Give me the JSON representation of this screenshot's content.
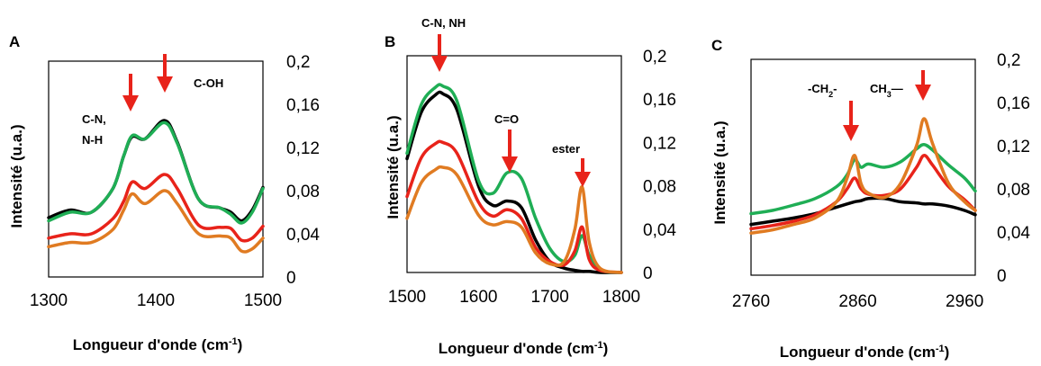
{
  "colors": {
    "black": "#000000",
    "red": "#e8231a",
    "green": "#1fae55",
    "orange": "#e07b22",
    "arrow": "#e8231a"
  },
  "chart_data": [
    {
      "type": "line",
      "panel": "A",
      "xlabel": "Longueur d'onde (cm",
      "xlabel_sup": "-1",
      "xlabel_end": ")",
      "ylabel": "Intensité (u.a.)",
      "xlim": [
        1300,
        1500
      ],
      "ylim": [
        0,
        0.2
      ],
      "x_ticks": [
        "1300",
        "1400",
        "1500"
      ],
      "y_ticks": [
        "0",
        "0,04",
        "0,08",
        "0,12",
        "0,16",
        "0,2"
      ],
      "x": [
        1300,
        1320,
        1340,
        1360,
        1370,
        1378,
        1390,
        1408,
        1420,
        1440,
        1460,
        1470,
        1480,
        1490,
        1500
      ],
      "series": [
        {
          "color": "black",
          "values": [
            0.055,
            0.062,
            0.06,
            0.082,
            0.112,
            0.13,
            0.128,
            0.145,
            0.125,
            0.072,
            0.064,
            0.06,
            0.052,
            0.062,
            0.083
          ]
        },
        {
          "color": "green",
          "values": [
            0.052,
            0.06,
            0.06,
            0.082,
            0.112,
            0.131,
            0.128,
            0.143,
            0.124,
            0.072,
            0.064,
            0.058,
            0.05,
            0.06,
            0.082
          ]
        },
        {
          "color": "red",
          "values": [
            0.036,
            0.04,
            0.04,
            0.054,
            0.07,
            0.088,
            0.082,
            0.095,
            0.082,
            0.048,
            0.046,
            0.045,
            0.034,
            0.036,
            0.047
          ]
        },
        {
          "color": "orange",
          "values": [
            0.028,
            0.032,
            0.032,
            0.044,
            0.062,
            0.077,
            0.068,
            0.08,
            0.068,
            0.04,
            0.038,
            0.036,
            0.024,
            0.026,
            0.036
          ]
        }
      ],
      "annotations": [
        {
          "text": "C-N,",
          "line2": "N-H"
        },
        {
          "text": "C-OH"
        }
      ]
    },
    {
      "type": "line",
      "panel": "B",
      "xlabel": "Longueur d'onde (cm",
      "xlabel_sup": "-1",
      "xlabel_end": ")",
      "ylabel": "Intensité (u.a.)",
      "xlim": [
        1500,
        1800
      ],
      "ylim": [
        0,
        0.2
      ],
      "x_ticks": [
        "1500",
        "1600",
        "1700",
        "1800"
      ],
      "y_ticks": [
        "0",
        "0,04",
        "0,08",
        "0,12",
        "0,16",
        "0,2"
      ],
      "x": [
        1500,
        1520,
        1540,
        1550,
        1570,
        1600,
        1620,
        1640,
        1660,
        1680,
        1700,
        1720,
        1735,
        1745,
        1755,
        1770,
        1800
      ],
      "series": [
        {
          "color": "black",
          "values": [
            0.105,
            0.148,
            0.164,
            0.165,
            0.15,
            0.08,
            0.062,
            0.066,
            0.06,
            0.03,
            0.01,
            0.004,
            0.002,
            0.001,
            0.001,
            0.0,
            0.0
          ]
        },
        {
          "color": "green",
          "values": [
            0.11,
            0.155,
            0.171,
            0.172,
            0.158,
            0.085,
            0.073,
            0.092,
            0.087,
            0.05,
            0.022,
            0.01,
            0.016,
            0.034,
            0.016,
            0.002,
            0.0
          ]
        },
        {
          "color": "red",
          "values": [
            0.07,
            0.106,
            0.119,
            0.12,
            0.11,
            0.065,
            0.052,
            0.058,
            0.05,
            0.023,
            0.01,
            0.007,
            0.02,
            0.042,
            0.012,
            0.002,
            0.0
          ]
        },
        {
          "color": "orange",
          "values": [
            0.05,
            0.083,
            0.095,
            0.097,
            0.09,
            0.053,
            0.044,
            0.047,
            0.042,
            0.018,
            0.008,
            0.01,
            0.04,
            0.079,
            0.028,
            0.004,
            0.0
          ]
        }
      ],
      "annotations": [
        {
          "text": "C-N, NH"
        },
        {
          "text": "C=O"
        },
        {
          "text": "ester"
        }
      ]
    },
    {
      "type": "line",
      "panel": "C",
      "xlabel": "Longueur d'onde (cm",
      "xlabel_sup": "-1",
      "xlabel_end": ")",
      "ylabel": "Intensité (u.a.)",
      "xlim": [
        2760,
        2970
      ],
      "ylim": [
        0,
        0.2
      ],
      "x_ticks": [
        "2760",
        "2860",
        "2960"
      ],
      "y_ticks": [
        "0",
        "0,04",
        "0,08",
        "0,12",
        "0,16",
        "0,2"
      ],
      "x": [
        2760,
        2780,
        2800,
        2820,
        2840,
        2850,
        2857,
        2863,
        2870,
        2885,
        2900,
        2915,
        2922,
        2930,
        2945,
        2960,
        2970
      ],
      "series": [
        {
          "color": "black",
          "values": [
            0.047,
            0.05,
            0.053,
            0.057,
            0.063,
            0.066,
            0.068,
            0.069,
            0.071,
            0.071,
            0.068,
            0.067,
            0.066,
            0.066,
            0.064,
            0.06,
            0.056
          ]
        },
        {
          "color": "green",
          "values": [
            0.057,
            0.06,
            0.065,
            0.071,
            0.082,
            0.093,
            0.107,
            0.1,
            0.103,
            0.1,
            0.105,
            0.117,
            0.121,
            0.116,
            0.102,
            0.09,
            0.078
          ]
        },
        {
          "color": "red",
          "values": [
            0.043,
            0.046,
            0.05,
            0.056,
            0.068,
            0.08,
            0.09,
            0.08,
            0.075,
            0.074,
            0.08,
            0.1,
            0.111,
            0.102,
            0.082,
            0.07,
            0.06
          ]
        },
        {
          "color": "orange",
          "values": [
            0.039,
            0.042,
            0.047,
            0.053,
            0.068,
            0.09,
            0.111,
            0.085,
            0.076,
            0.072,
            0.085,
            0.12,
            0.145,
            0.122,
            0.085,
            0.068,
            0.06
          ]
        }
      ],
      "annotations": [
        {
          "text": "-CH",
          "sub": "2",
          "end": "-"
        },
        {
          "text": "CH",
          "sub": "3",
          "end": "—"
        }
      ]
    }
  ],
  "panel_labels": [
    "A",
    "B",
    "C"
  ]
}
